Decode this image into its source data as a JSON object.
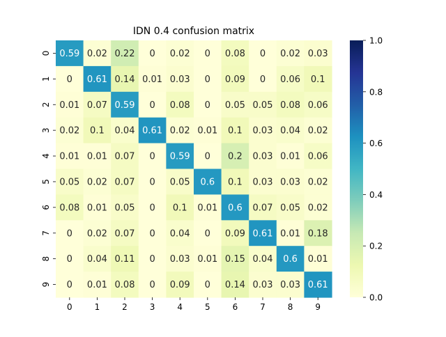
{
  "chart_data": {
    "type": "heatmap",
    "title": "IDN 0.4 confusion matrix",
    "xlabel": "",
    "ylabel": "",
    "x_tick_labels": [
      "0",
      "1",
      "2",
      "3",
      "4",
      "5",
      "6",
      "7",
      "8",
      "9"
    ],
    "y_tick_labels": [
      "0",
      "1",
      "2",
      "3",
      "4",
      "5",
      "6",
      "7",
      "8",
      "9"
    ],
    "values": [
      [
        0.59,
        0.02,
        0.22,
        0,
        0.02,
        0,
        0.08,
        0,
        0.02,
        0.03
      ],
      [
        0,
        0.61,
        0.14,
        0.01,
        0.03,
        0,
        0.09,
        0,
        0.06,
        0.1
      ],
      [
        0.01,
        0.07,
        0.59,
        0,
        0.08,
        0,
        0.05,
        0.05,
        0.08,
        0.06
      ],
      [
        0.02,
        0.1,
        0.04,
        0.61,
        0.02,
        0.01,
        0.1,
        0.03,
        0.04,
        0.02
      ],
      [
        0.01,
        0.01,
        0.07,
        0,
        0.59,
        0,
        0.2,
        0.03,
        0.01,
        0.06
      ],
      [
        0.05,
        0.02,
        0.07,
        0,
        0.05,
        0.6,
        0.1,
        0.03,
        0.03,
        0.02
      ],
      [
        0.08,
        0.01,
        0.05,
        0,
        0.1,
        0.01,
        0.6,
        0.07,
        0.05,
        0.02
      ],
      [
        0,
        0.02,
        0.07,
        0,
        0.04,
        0,
        0.09,
        0.61,
        0.01,
        0.18
      ],
      [
        0,
        0.04,
        0.11,
        0,
        0.03,
        0.01,
        0.15,
        0.04,
        0.6,
        0.01
      ],
      [
        0,
        0.01,
        0.08,
        0,
        0.09,
        0,
        0.14,
        0.03,
        0.03,
        0.61
      ]
    ],
    "value_range": [
      0.0,
      1.0
    ],
    "colorbar_ticks": [
      "0.0",
      "0.2",
      "0.4",
      "0.6",
      "0.8",
      "1.0"
    ],
    "colormap": "YlGnBu",
    "annotated": true
  }
}
